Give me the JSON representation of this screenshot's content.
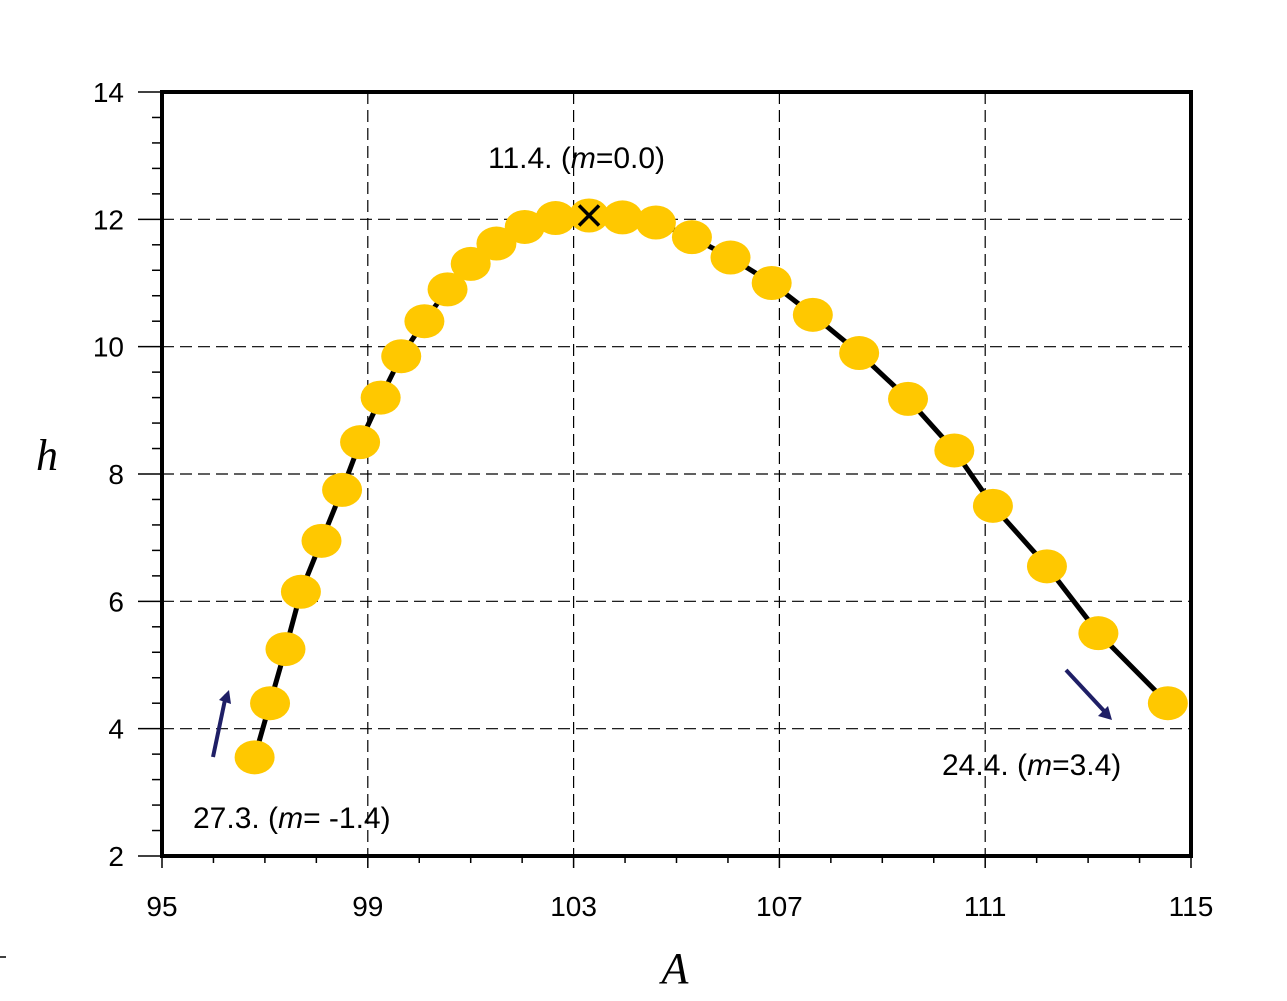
{
  "chart_data": {
    "type": "scatter",
    "title": "",
    "xlabel": "A",
    "ylabel": "h",
    "xlim": [
      95,
      115
    ],
    "ylim": [
      2,
      14
    ],
    "xticks": [
      95,
      99,
      103,
      107,
      111,
      115
    ],
    "yticks": [
      2,
      4,
      6,
      8,
      10,
      12,
      14
    ],
    "grid": true,
    "colors": {
      "marker": "#FFC800",
      "line": "#000000",
      "arrow": "#1F1F66"
    },
    "series": [
      {
        "points": [
          [
            96.8,
            3.55
          ],
          [
            97.1,
            4.4
          ],
          [
            97.4,
            5.25
          ],
          [
            97.7,
            6.15
          ],
          [
            98.1,
            6.95
          ],
          [
            98.5,
            7.75
          ],
          [
            98.85,
            8.5
          ],
          [
            99.25,
            9.2
          ],
          [
            99.65,
            9.85
          ],
          [
            100.1,
            10.4
          ],
          [
            100.55,
            10.9
          ],
          [
            101.0,
            11.3
          ],
          [
            101.5,
            11.62
          ],
          [
            102.05,
            11.88
          ],
          [
            102.65,
            12.02
          ],
          [
            103.3,
            12.06
          ],
          [
            103.95,
            12.03
          ],
          [
            104.6,
            11.95
          ],
          [
            105.3,
            11.72
          ],
          [
            106.05,
            11.4
          ],
          [
            106.85,
            11.0
          ],
          [
            107.65,
            10.5
          ],
          [
            108.55,
            9.9
          ],
          [
            109.5,
            9.18
          ],
          [
            110.4,
            8.37
          ],
          [
            111.15,
            7.5
          ],
          [
            112.2,
            6.55
          ],
          [
            113.2,
            5.5
          ],
          [
            114.55,
            4.4
          ]
        ]
      }
    ],
    "annotations": [
      {
        "id": "peak",
        "x_anchor": 103.3,
        "y_anchor": 12.06,
        "marker": "x",
        "text_prefix": "11.4. (",
        "text_var": "m",
        "text_suffix": "=0.0)"
      },
      {
        "id": "left",
        "text_prefix": "27.3. (",
        "text_var": "m",
        "text_suffix": "= -1.4)"
      },
      {
        "id": "right",
        "text_prefix": "24.4. (",
        "text_var": "m",
        "text_suffix": "=3.4)"
      }
    ]
  }
}
